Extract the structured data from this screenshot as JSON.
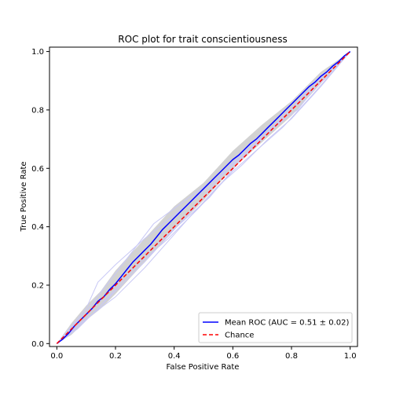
{
  "chart_data": {
    "type": "line",
    "title": "ROC plot for trait conscientiousness",
    "xlabel": "False Positive Rate",
    "ylabel": "True Positive Rate",
    "xlim": [
      -0.025,
      1.025
    ],
    "ylim": [
      -0.01,
      1.015
    ],
    "xticks": [
      0.0,
      0.2,
      0.4,
      0.6,
      0.8,
      1.0
    ],
    "yticks": [
      0.0,
      0.2,
      0.4,
      0.6,
      0.8,
      1.0
    ],
    "tick_labels": [
      "0.0",
      "0.2",
      "0.4",
      "0.6",
      "0.8",
      "1.0"
    ],
    "grid": false,
    "legend_position": "lower-right",
    "colors": {
      "mean": "#0000ff",
      "chance": "#ff0000",
      "folds": "#c8c8f5",
      "band": "#b4b4b4"
    },
    "series": [
      {
        "name": "Mean ROC (AUC = 0.51 ± 0.02)",
        "style": "solid",
        "x": [
          0,
          0.02,
          0.04,
          0.06,
          0.08,
          0.1,
          0.12,
          0.14,
          0.16,
          0.18,
          0.2,
          0.22,
          0.24,
          0.26,
          0.28,
          0.3,
          0.32,
          0.34,
          0.36,
          0.38,
          0.4,
          0.42,
          0.44,
          0.46,
          0.48,
          0.5,
          0.52,
          0.54,
          0.56,
          0.58,
          0.6,
          0.62,
          0.64,
          0.66,
          0.68,
          0.7,
          0.72,
          0.74,
          0.76,
          0.78,
          0.8,
          0.82,
          0.84,
          0.86,
          0.88,
          0.9,
          0.92,
          0.94,
          0.96,
          0.98,
          1.0
        ],
        "y": [
          0,
          0.015,
          0.035,
          0.06,
          0.08,
          0.1,
          0.12,
          0.145,
          0.16,
          0.185,
          0.205,
          0.23,
          0.255,
          0.28,
          0.3,
          0.32,
          0.34,
          0.365,
          0.39,
          0.41,
          0.43,
          0.45,
          0.47,
          0.49,
          0.51,
          0.53,
          0.55,
          0.57,
          0.59,
          0.61,
          0.63,
          0.645,
          0.665,
          0.685,
          0.7,
          0.72,
          0.74,
          0.76,
          0.78,
          0.8,
          0.82,
          0.84,
          0.86,
          0.88,
          0.895,
          0.915,
          0.93,
          0.95,
          0.965,
          0.985,
          1.0
        ]
      },
      {
        "name": "Chance",
        "style": "dashed",
        "x": [
          0,
          1
        ],
        "y": [
          0,
          1
        ]
      }
    ],
    "folds": [
      {
        "x": [
          0,
          0.05,
          0.1,
          0.14,
          0.2,
          0.3,
          0.4,
          0.5,
          0.6,
          0.7,
          0.75,
          0.8,
          0.88,
          0.95,
          1.0
        ],
        "y": [
          0,
          0.06,
          0.12,
          0.21,
          0.27,
          0.36,
          0.44,
          0.52,
          0.61,
          0.7,
          0.75,
          0.8,
          0.9,
          0.95,
          1.0
        ]
      },
      {
        "x": [
          0,
          0.06,
          0.12,
          0.2,
          0.3,
          0.4,
          0.5,
          0.58,
          0.66,
          0.74,
          0.82,
          0.9,
          1.0
        ],
        "y": [
          0,
          0.05,
          0.1,
          0.18,
          0.28,
          0.39,
          0.5,
          0.6,
          0.68,
          0.74,
          0.8,
          0.9,
          1.0
        ]
      },
      {
        "x": [
          0,
          0.08,
          0.16,
          0.24,
          0.32,
          0.42,
          0.52,
          0.62,
          0.7,
          0.8,
          0.9,
          1.0
        ],
        "y": [
          0,
          0.07,
          0.16,
          0.24,
          0.32,
          0.41,
          0.5,
          0.62,
          0.71,
          0.8,
          0.91,
          1.0
        ]
      },
      {
        "x": [
          0,
          0.05,
          0.12,
          0.2,
          0.3,
          0.45,
          0.55,
          0.63,
          0.72,
          0.8,
          0.9,
          1.0
        ],
        "y": [
          0,
          0.04,
          0.1,
          0.16,
          0.26,
          0.43,
          0.54,
          0.61,
          0.7,
          0.77,
          0.88,
          1.0
        ]
      },
      {
        "x": [
          0,
          0.1,
          0.2,
          0.33,
          0.45,
          0.55,
          0.66,
          0.72,
          0.78,
          0.86,
          0.93,
          1.0
        ],
        "y": [
          0,
          0.11,
          0.24,
          0.41,
          0.5,
          0.57,
          0.67,
          0.72,
          0.79,
          0.86,
          0.92,
          1.0
        ]
      },
      {
        "x": [
          0,
          0.07,
          0.15,
          0.22,
          0.3,
          0.38,
          0.48,
          0.6,
          0.69,
          0.77,
          0.87,
          0.94,
          1.0
        ],
        "y": [
          0,
          0.05,
          0.13,
          0.21,
          0.29,
          0.36,
          0.46,
          0.59,
          0.67,
          0.74,
          0.85,
          0.93,
          1.0
        ]
      }
    ],
    "band": {
      "x": [
        0,
        0.05,
        0.1,
        0.15,
        0.2,
        0.3,
        0.4,
        0.5,
        0.6,
        0.7,
        0.8,
        0.9,
        1.0
      ],
      "lower": [
        0,
        0.03,
        0.08,
        0.12,
        0.17,
        0.28,
        0.39,
        0.49,
        0.6,
        0.69,
        0.78,
        0.89,
        1.0
      ],
      "upper": [
        0,
        0.07,
        0.13,
        0.18,
        0.25,
        0.36,
        0.47,
        0.55,
        0.66,
        0.75,
        0.83,
        0.93,
        1.0
      ]
    }
  }
}
